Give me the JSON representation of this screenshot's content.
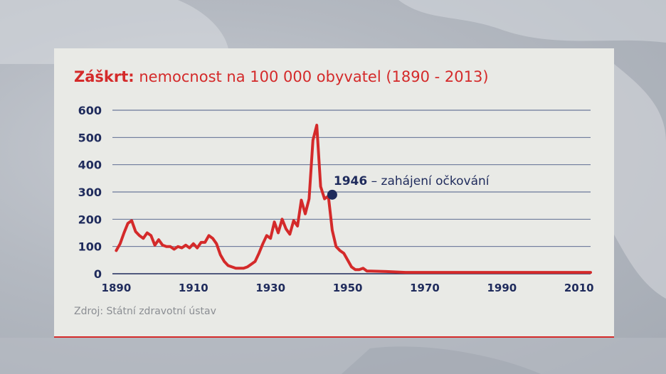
{
  "title_prefix": "Záškrt:",
  "title_rest": " nemocnost na 100 000 obyvatel (1890 - 2013)",
  "source": "Zdroj: Státní zdravotní ústav",
  "colors": {
    "accent": "#d42a2a",
    "text": "#1f2b5c",
    "panel": "#e9eae6",
    "grid": "#4a5a86"
  },
  "chart_data": {
    "type": "line",
    "title": "Záškrt: nemocnost na 100 000 obyvatel (1890 - 2013)",
    "xlabel": "",
    "ylabel": "",
    "xlim": [
      1889,
      2013
    ],
    "ylim": [
      0,
      600
    ],
    "yticks": [
      0,
      100,
      200,
      300,
      400,
      500,
      600
    ],
    "xticks": [
      1890,
      1910,
      1930,
      1950,
      1970,
      1990,
      2010
    ],
    "grid": true,
    "legend": "none",
    "series": [
      {
        "color": "#d42a2a",
        "x": [
          1890,
          1891,
          1892,
          1893,
          1894,
          1895,
          1896,
          1897,
          1898,
          1899,
          1900,
          1901,
          1902,
          1903,
          1904,
          1905,
          1906,
          1907,
          1908,
          1909,
          1910,
          1911,
          1912,
          1913,
          1914,
          1915,
          1916,
          1917,
          1918,
          1919,
          1920,
          1921,
          1922,
          1923,
          1924,
          1925,
          1926,
          1927,
          1928,
          1929,
          1930,
          1931,
          1932,
          1933,
          1934,
          1935,
          1936,
          1937,
          1938,
          1939,
          1940,
          1941,
          1942,
          1943,
          1944,
          1945,
          1946,
          1947,
          1948,
          1949,
          1950,
          1951,
          1952,
          1953,
          1954,
          1955,
          1956,
          1960,
          1965,
          1970,
          1975,
          1980,
          1985,
          1990,
          1995,
          2000,
          2005,
          2010,
          2013
        ],
        "y": [
          85,
          110,
          150,
          185,
          195,
          155,
          140,
          130,
          150,
          140,
          105,
          125,
          105,
          100,
          100,
          90,
          100,
          95,
          105,
          95,
          110,
          95,
          115,
          115,
          140,
          130,
          110,
          70,
          45,
          30,
          25,
          20,
          20,
          20,
          25,
          35,
          45,
          75,
          110,
          140,
          130,
          190,
          150,
          200,
          165,
          145,
          195,
          175,
          270,
          220,
          275,
          490,
          545,
          320,
          275,
          285,
          160,
          100,
          85,
          75,
          50,
          25,
          15,
          15,
          20,
          10,
          10,
          8,
          5,
          5,
          5,
          5,
          5,
          5,
          5,
          5,
          5,
          5,
          5
        ]
      }
    ],
    "annotation": {
      "year": 1946,
      "value": 290,
      "label_bold": "1946",
      "label_rest": " – zahájení očkování"
    }
  }
}
